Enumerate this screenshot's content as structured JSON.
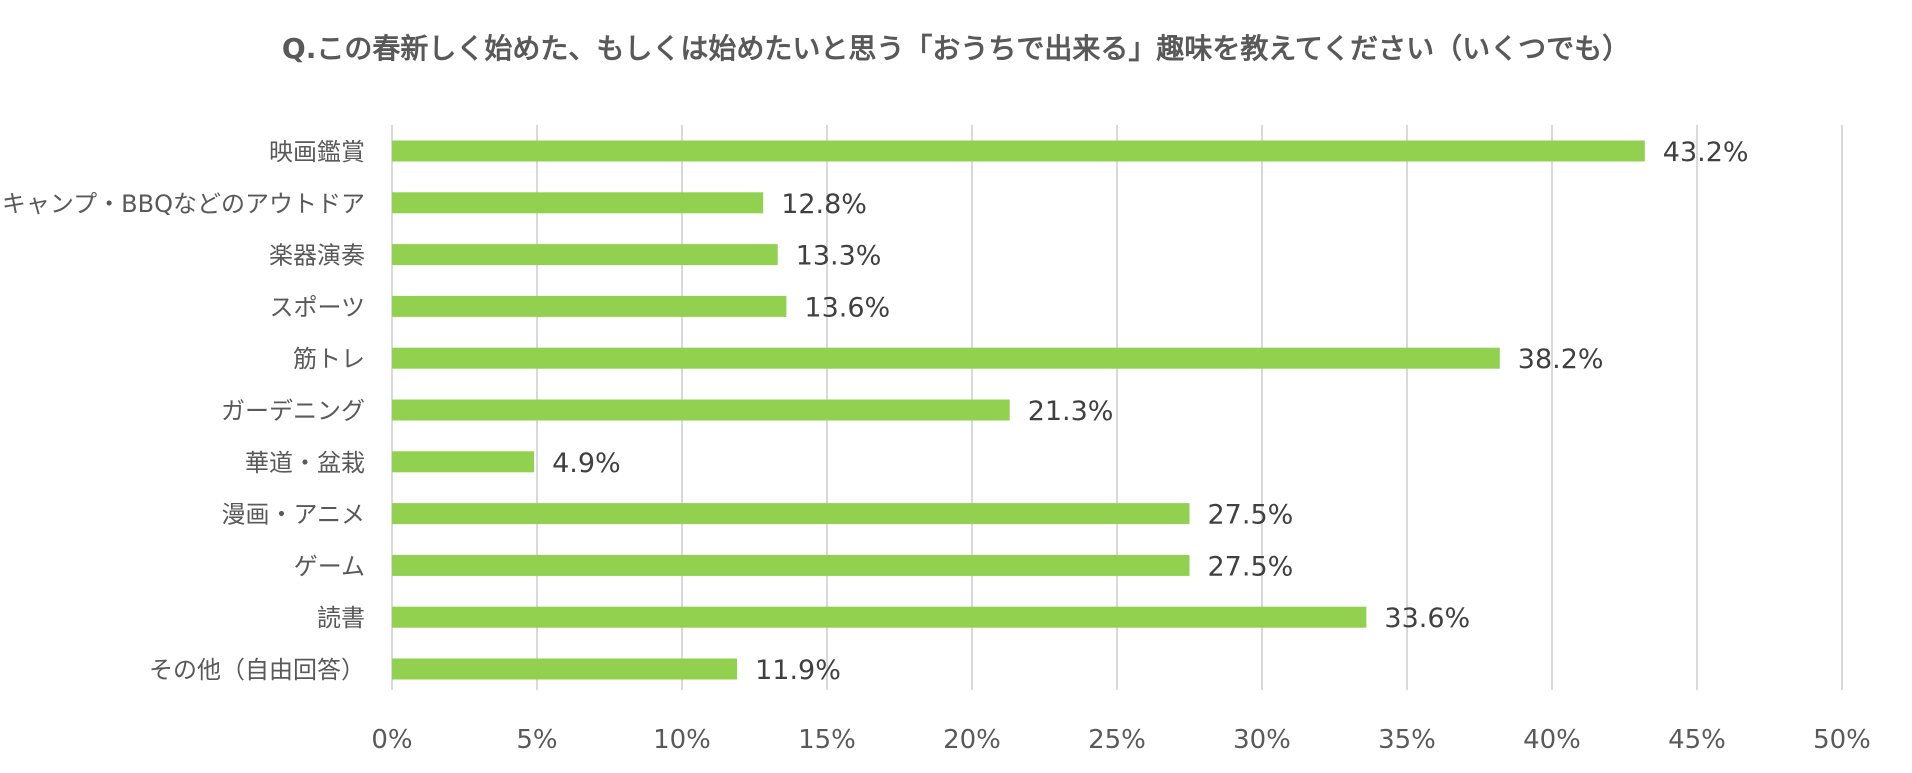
{
  "chart_data": {
    "type": "bar",
    "orientation": "horizontal",
    "title": "Q.この春新しく始めた、もしくは始めたいと思う「おうちで出来る」趣味を教えてください（いくつでも）",
    "categories": [
      "映画鑑賞",
      "キャンプ・BBQなどのアウトドア",
      "楽器演奏",
      "スポーツ",
      "筋トレ",
      "ガーデニング",
      "華道・盆栽",
      "漫画・アニメ",
      "ゲーム",
      "読書",
      "その他（自由回答）"
    ],
    "values": [
      43.2,
      12.8,
      13.3,
      13.6,
      38.2,
      21.3,
      4.9,
      27.5,
      27.5,
      33.6,
      11.9
    ],
    "value_labels": [
      "43.2%",
      "12.8%",
      "13.3%",
      "13.6%",
      "38.2%",
      "21.3%",
      "4.9%",
      "27.5%",
      "27.5%",
      "33.6%",
      "11.9%"
    ],
    "xlim": [
      0,
      50
    ],
    "x_ticks": [
      0,
      5,
      10,
      15,
      20,
      25,
      30,
      35,
      40,
      45,
      50
    ],
    "x_tick_labels": [
      "0%",
      "5%",
      "10%",
      "15%",
      "20%",
      "25%",
      "30%",
      "35%",
      "40%",
      "45%",
      "50%"
    ],
    "grid": "vertical",
    "legend": "none",
    "colors": {
      "bar": "#92d050",
      "grid": "#d9d9d9",
      "text": "#595959",
      "data_label": "#404040"
    }
  }
}
